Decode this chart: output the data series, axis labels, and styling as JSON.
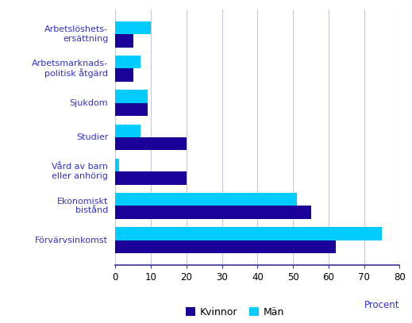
{
  "categories": [
    "Arbetslöshets-\nersättning",
    "Arbetsmarknads-\npolitisk åtgärd",
    "Sjukdom",
    "Studier",
    "Vård av barn\neller anhörig",
    "Ekonomiskt\nbistånd",
    "Förvärvsinkomst"
  ],
  "kvinnor": [
    5,
    5,
    9,
    20,
    20,
    55,
    62
  ],
  "man": [
    10,
    7,
    9,
    7,
    1,
    51,
    75
  ],
  "color_kvinnor": "#1a0099",
  "color_man": "#00ccff",
  "xlabel": "Procent",
  "legend_kvinnor": "Kvinnor",
  "legend_man": "Män",
  "xlim": [
    0,
    80
  ],
  "xticks": [
    0,
    10,
    20,
    30,
    40,
    50,
    60,
    70,
    80
  ],
  "background_color": "#ffffff",
  "grid_color": "#c8c8d8",
  "label_color": "#3333cc",
  "bar_height": 0.38,
  "figure_width": 5.19,
  "figure_height": 4.07,
  "dpi": 100
}
